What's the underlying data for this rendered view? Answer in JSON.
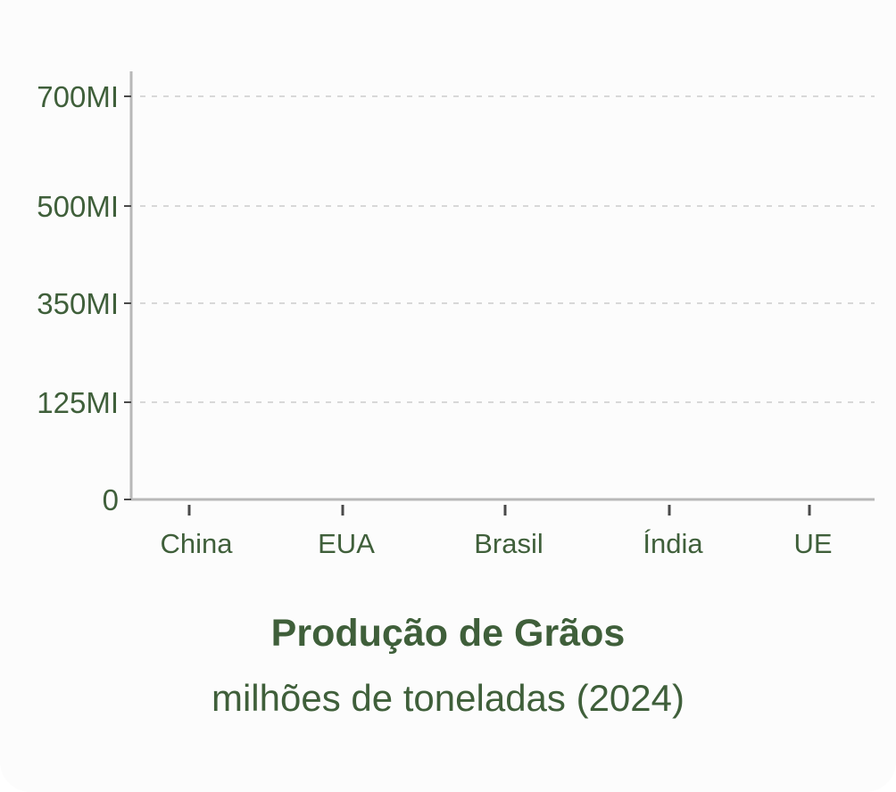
{
  "chart_data": {
    "type": "bar",
    "title": "Produção de Grãos",
    "subtitle": "milhões de toneladas (2024)",
    "categories": [
      "China",
      "EUA",
      "Brasil",
      "Índia",
      "UE"
    ],
    "values": [
      0,
      0,
      0,
      0,
      0
    ],
    "y_ticks": [
      0,
      125,
      350,
      500,
      700
    ],
    "y_tick_labels": [
      "0",
      "125MI",
      "350MI",
      "500MI",
      "700MI"
    ],
    "ylim": [
      0,
      700
    ],
    "grid": "dashed horizontal",
    "xlabel": "",
    "ylabel": ""
  },
  "colors": {
    "text": "#3f5f3a",
    "axis": "#b8b8b8",
    "grid": "#d8d8d8",
    "background": "#fcfcfc"
  }
}
